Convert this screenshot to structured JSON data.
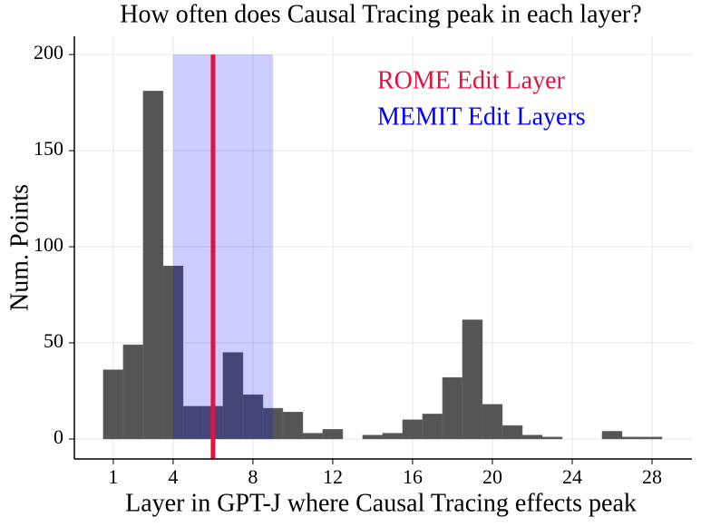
{
  "chart_data": {
    "type": "histogram",
    "title": "How often does Causal Tracing peak in each layer?",
    "xlabel": "Layer in GPT-J where Causal Tracing effects peak",
    "ylabel": "Num. Points",
    "bins": [
      0.5,
      1.5,
      2.5,
      3.5,
      4.5,
      5.5,
      6.5,
      7.5,
      8.5,
      9.5,
      10.5,
      11.5,
      12.5,
      13.5,
      14.5,
      15.5,
      16.5,
      17.5,
      18.5,
      19.5,
      20.5,
      21.5,
      22.5,
      23.5,
      24.5,
      25.5,
      26.5,
      27.5,
      28.5
    ],
    "counts": [
      36,
      49,
      181,
      90,
      17,
      17,
      45,
      23,
      16,
      14,
      3,
      5,
      0,
      2,
      3,
      10,
      13,
      32,
      62,
      18,
      7,
      2,
      1,
      0,
      0,
      4,
      1,
      1
    ],
    "color": "#555555",
    "xlim": [
      -0.95,
      30
    ],
    "ylim": [
      -10.4,
      209.5
    ],
    "xticks": [
      1,
      4,
      8,
      12,
      16,
      20,
      24,
      28
    ],
    "yticks": [
      0,
      50,
      100,
      150,
      200
    ],
    "grid": true,
    "rome_line": {
      "name": "ROME Edit Layer",
      "color": "#e0143c",
      "x": 6
    },
    "memit_band": {
      "name": "MEMIT Edit Layers",
      "color": "#0000ff",
      "x": [
        4,
        9
      ],
      "y": [
        0,
        200
      ]
    }
  }
}
